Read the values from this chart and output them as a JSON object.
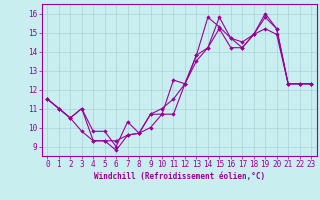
{
  "xlabel": "Windchill (Refroidissement éolien,°C)",
  "background_color": "#c8eef0",
  "grid_color": "#aad4d8",
  "line_color": "#990099",
  "xlim": [
    -0.5,
    23.5
  ],
  "ylim": [
    8.5,
    16.5
  ],
  "xticks": [
    0,
    1,
    2,
    3,
    4,
    5,
    6,
    7,
    8,
    9,
    10,
    11,
    12,
    13,
    14,
    15,
    16,
    17,
    18,
    19,
    20,
    21,
    22,
    23
  ],
  "yticks": [
    9,
    10,
    11,
    12,
    13,
    14,
    15,
    16
  ],
  "line1_x": [
    0,
    1,
    2,
    3,
    4,
    5,
    6,
    7,
    8,
    9,
    10,
    11,
    12,
    13,
    14,
    15,
    16,
    17,
    18,
    19,
    20,
    21,
    22,
    23
  ],
  "line1_y": [
    11.5,
    11.0,
    10.5,
    9.8,
    9.3,
    9.3,
    8.8,
    9.6,
    9.7,
    10.0,
    10.7,
    10.7,
    12.3,
    13.5,
    14.2,
    15.2,
    14.2,
    14.2,
    14.9,
    15.2,
    14.9,
    12.3,
    12.3,
    12.3
  ],
  "line2_x": [
    0,
    1,
    2,
    3,
    4,
    5,
    6,
    7,
    8,
    9,
    10,
    11,
    12,
    13,
    14,
    15,
    16,
    17,
    18,
    19,
    20,
    21,
    22,
    23
  ],
  "line2_y": [
    11.5,
    11.0,
    10.5,
    11.0,
    9.3,
    9.3,
    9.3,
    9.6,
    9.7,
    10.7,
    10.7,
    12.5,
    12.3,
    13.8,
    14.2,
    15.8,
    14.7,
    14.2,
    14.9,
    15.8,
    15.2,
    12.3,
    12.3,
    12.3
  ],
  "line3_x": [
    0,
    1,
    2,
    3,
    4,
    5,
    6,
    7,
    8,
    9,
    10,
    11,
    12,
    13,
    14,
    15,
    16,
    17,
    18,
    19,
    20,
    21,
    22,
    23
  ],
  "line3_y": [
    11.5,
    11.0,
    10.5,
    11.0,
    9.8,
    9.8,
    9.0,
    10.3,
    9.7,
    10.7,
    11.0,
    11.5,
    12.3,
    13.8,
    15.8,
    15.3,
    14.7,
    14.5,
    14.9,
    16.0,
    15.2,
    12.3,
    12.3,
    12.3
  ],
  "tick_fontsize": 5.5,
  "xlabel_fontsize": 5.5,
  "marker_size": 2.2,
  "line_width": 0.8
}
